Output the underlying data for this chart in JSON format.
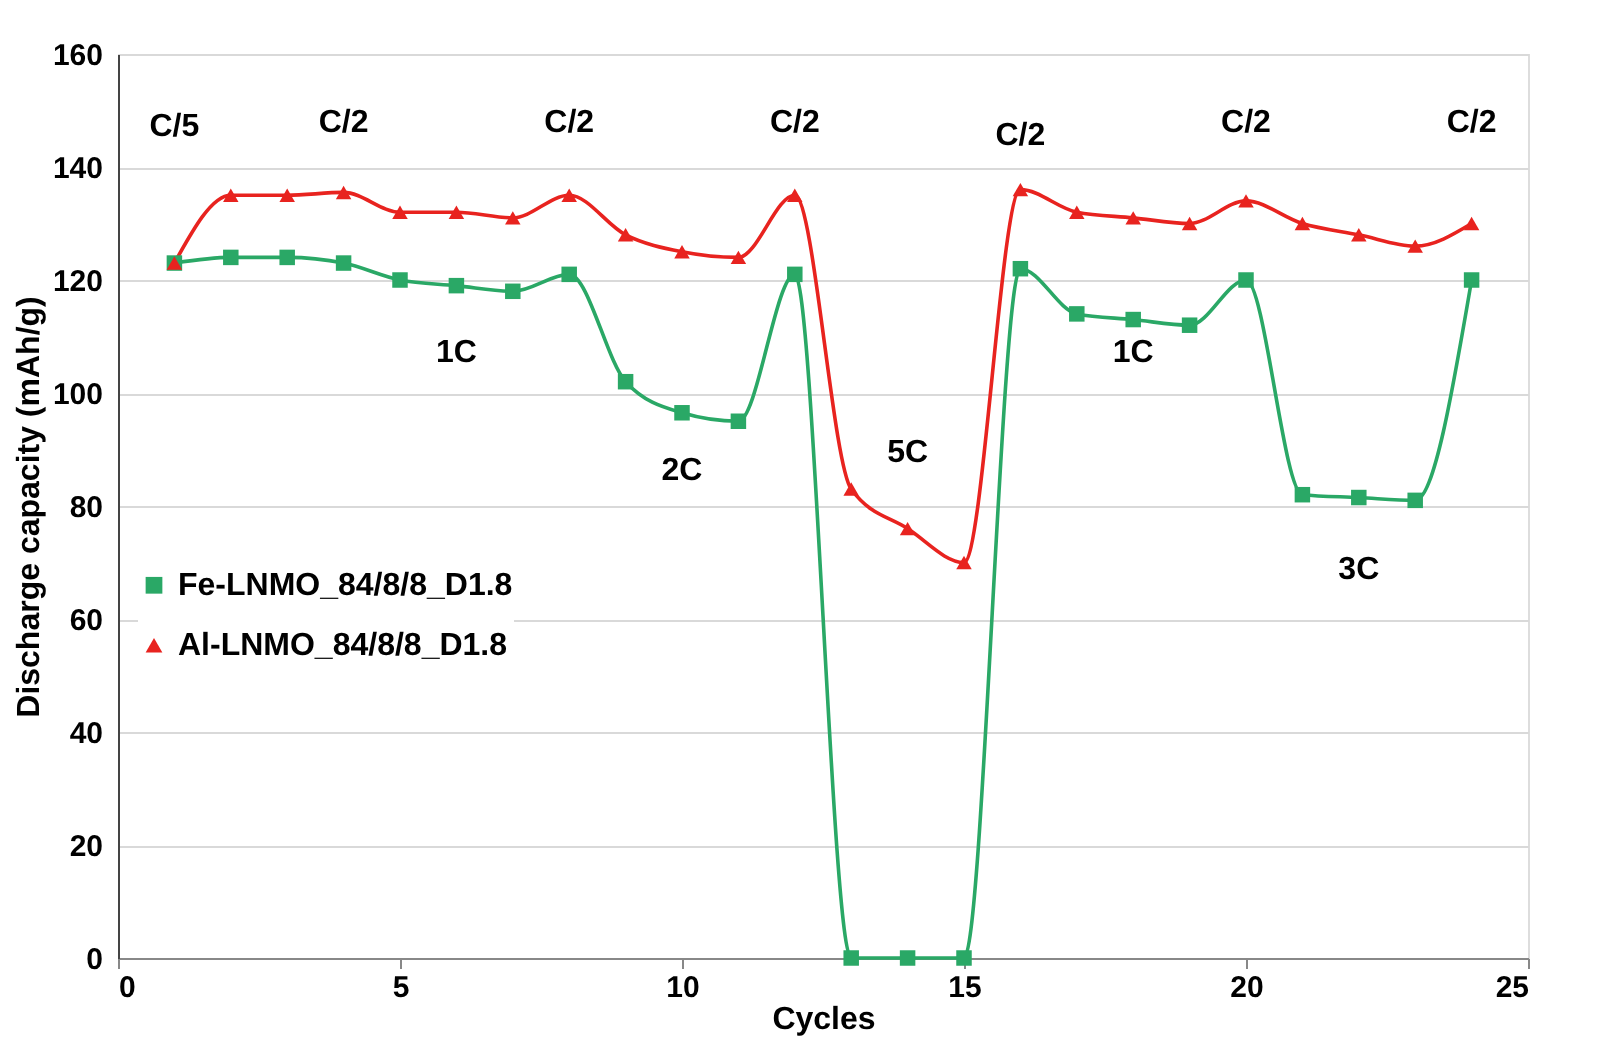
{
  "chart_data": {
    "type": "line",
    "xlabel": "Cycles",
    "ylabel": "Discharge capacity (mAh/g)",
    "x": [
      1,
      2,
      3,
      4,
      5,
      6,
      7,
      8,
      9,
      10,
      11,
      12,
      13,
      14,
      15,
      16,
      17,
      18,
      19,
      20,
      21,
      22,
      23,
      24
    ],
    "series": [
      {
        "name": "Fe-LNMO_84/8/8_D1.8",
        "color": "#2aa866",
        "marker": "square",
        "values": [
          123,
          124,
          124,
          123,
          120,
          119,
          118,
          121,
          102,
          96.5,
          95,
          121,
          0,
          0,
          0,
          122,
          114,
          113,
          112,
          120,
          82,
          81.5,
          81,
          120
        ]
      },
      {
        "name": "Al-LNMO_84/8/8_D1.8",
        "color": "#e8231f",
        "marker": "triangle",
        "values": [
          123,
          135,
          135,
          135.5,
          132,
          132,
          131,
          135,
          128,
          125,
          124,
          135,
          83,
          76,
          70,
          136,
          132,
          131,
          130,
          134,
          130,
          128,
          126,
          130
        ]
      }
    ],
    "xlim": [
      0,
      25
    ],
    "xticks": [
      0,
      5,
      10,
      15,
      20,
      25
    ],
    "ylim": [
      0,
      160
    ],
    "yticks": [
      0,
      20,
      40,
      60,
      80,
      100,
      120,
      140,
      160
    ],
    "grid": "y",
    "legend": "left",
    "line_style": "solid",
    "annotations": [
      "C/5",
      "C/2",
      "C/2",
      "C/2",
      "1C",
      "2C",
      "5C",
      "C/2",
      "1C",
      "C/2",
      "3C",
      "C/2"
    ]
  }
}
